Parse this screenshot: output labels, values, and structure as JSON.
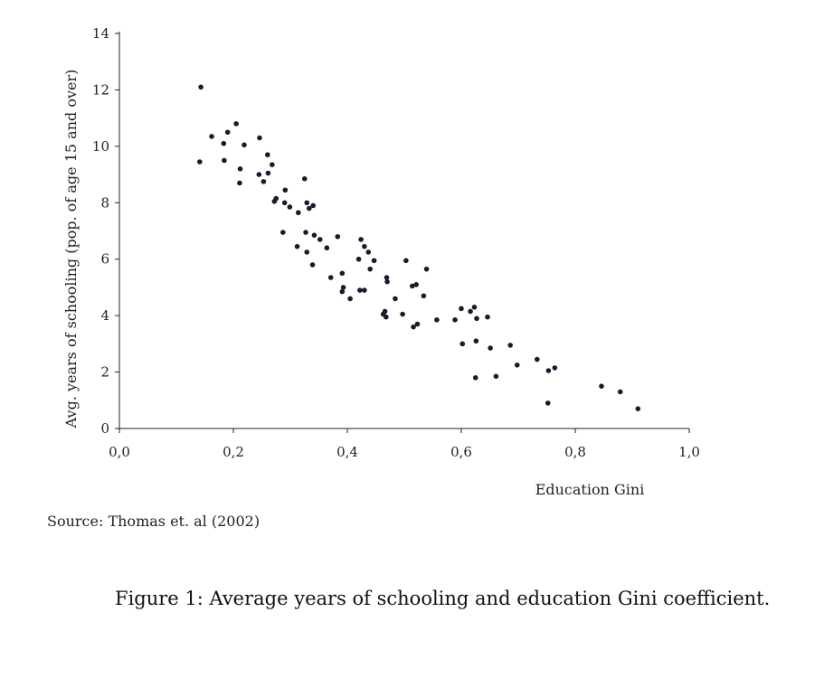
{
  "chart_data": {
    "type": "scatter",
    "title": "",
    "xlabel": "Education Gini",
    "ylabel": "Avg. years of schooling (pop. of age 15 and over)",
    "xlim": [
      0,
      1
    ],
    "ylim": [
      0,
      14
    ],
    "x_ticks": [
      0,
      0.2,
      0.4,
      0.6,
      0.8,
      1.0
    ],
    "x_tick_labels": [
      "0,0",
      "0,2",
      "0,4",
      "0,6",
      "0,8",
      "1,0"
    ],
    "y_ticks": [
      0,
      2,
      4,
      6,
      8,
      10,
      12,
      14
    ],
    "y_tick_labels": [
      "0",
      "2",
      "4",
      "6",
      "8",
      "10",
      "12",
      "14"
    ],
    "marker_color": "#1a1a2e",
    "points": [
      [
        0.143,
        12.1
      ],
      [
        0.141,
        9.45
      ],
      [
        0.162,
        10.35
      ],
      [
        0.183,
        10.1
      ],
      [
        0.19,
        10.5
      ],
      [
        0.184,
        9.5
      ],
      [
        0.205,
        10.8
      ],
      [
        0.212,
        9.2
      ],
      [
        0.219,
        10.05
      ],
      [
        0.211,
        8.7
      ],
      [
        0.246,
        10.3
      ],
      [
        0.245,
        9.0
      ],
      [
        0.26,
        9.7
      ],
      [
        0.268,
        9.35
      ],
      [
        0.261,
        9.05
      ],
      [
        0.253,
        8.75
      ],
      [
        0.272,
        8.05
      ],
      [
        0.275,
        8.15
      ],
      [
        0.291,
        8.45
      ],
      [
        0.29,
        8.0
      ],
      [
        0.299,
        7.85
      ],
      [
        0.325,
        8.85
      ],
      [
        0.329,
        8.0
      ],
      [
        0.34,
        7.9
      ],
      [
        0.333,
        7.8
      ],
      [
        0.314,
        7.65
      ],
      [
        0.287,
        6.95
      ],
      [
        0.327,
        6.95
      ],
      [
        0.342,
        6.85
      ],
      [
        0.352,
        6.7
      ],
      [
        0.312,
        6.45
      ],
      [
        0.364,
        6.4
      ],
      [
        0.329,
        6.25
      ],
      [
        0.383,
        6.8
      ],
      [
        0.424,
        6.7
      ],
      [
        0.43,
        6.45
      ],
      [
        0.437,
        6.25
      ],
      [
        0.42,
        6.0
      ],
      [
        0.447,
        5.95
      ],
      [
        0.339,
        5.8
      ],
      [
        0.44,
        5.65
      ],
      [
        0.371,
        5.35
      ],
      [
        0.391,
        5.5
      ],
      [
        0.469,
        5.35
      ],
      [
        0.47,
        5.2
      ],
      [
        0.503,
        5.95
      ],
      [
        0.539,
        5.65
      ],
      [
        0.393,
        5.0
      ],
      [
        0.391,
        4.85
      ],
      [
        0.422,
        4.9
      ],
      [
        0.43,
        4.9
      ],
      [
        0.405,
        4.6
      ],
      [
        0.514,
        5.05
      ],
      [
        0.521,
        5.1
      ],
      [
        0.534,
        4.7
      ],
      [
        0.484,
        4.6
      ],
      [
        0.466,
        4.15
      ],
      [
        0.463,
        4.05
      ],
      [
        0.468,
        3.95
      ],
      [
        0.497,
        4.05
      ],
      [
        0.516,
        3.6
      ],
      [
        0.523,
        3.7
      ],
      [
        0.557,
        3.85
      ],
      [
        0.589,
        3.85
      ],
      [
        0.6,
        4.25
      ],
      [
        0.616,
        4.15
      ],
      [
        0.623,
        4.3
      ],
      [
        0.627,
        3.9
      ],
      [
        0.646,
        3.95
      ],
      [
        0.602,
        3.0
      ],
      [
        0.626,
        3.1
      ],
      [
        0.651,
        2.85
      ],
      [
        0.686,
        2.95
      ],
      [
        0.625,
        1.8
      ],
      [
        0.661,
        1.85
      ],
      [
        0.698,
        2.25
      ],
      [
        0.733,
        2.45
      ],
      [
        0.764,
        2.15
      ],
      [
        0.753,
        2.05
      ],
      [
        0.752,
        0.9
      ],
      [
        0.846,
        1.5
      ],
      [
        0.879,
        1.3
      ],
      [
        0.91,
        0.7
      ]
    ]
  },
  "source_note": "Source: Thomas et. al (2002)",
  "caption": "Figure 1: Average years of schooling and education Gini coefficient."
}
